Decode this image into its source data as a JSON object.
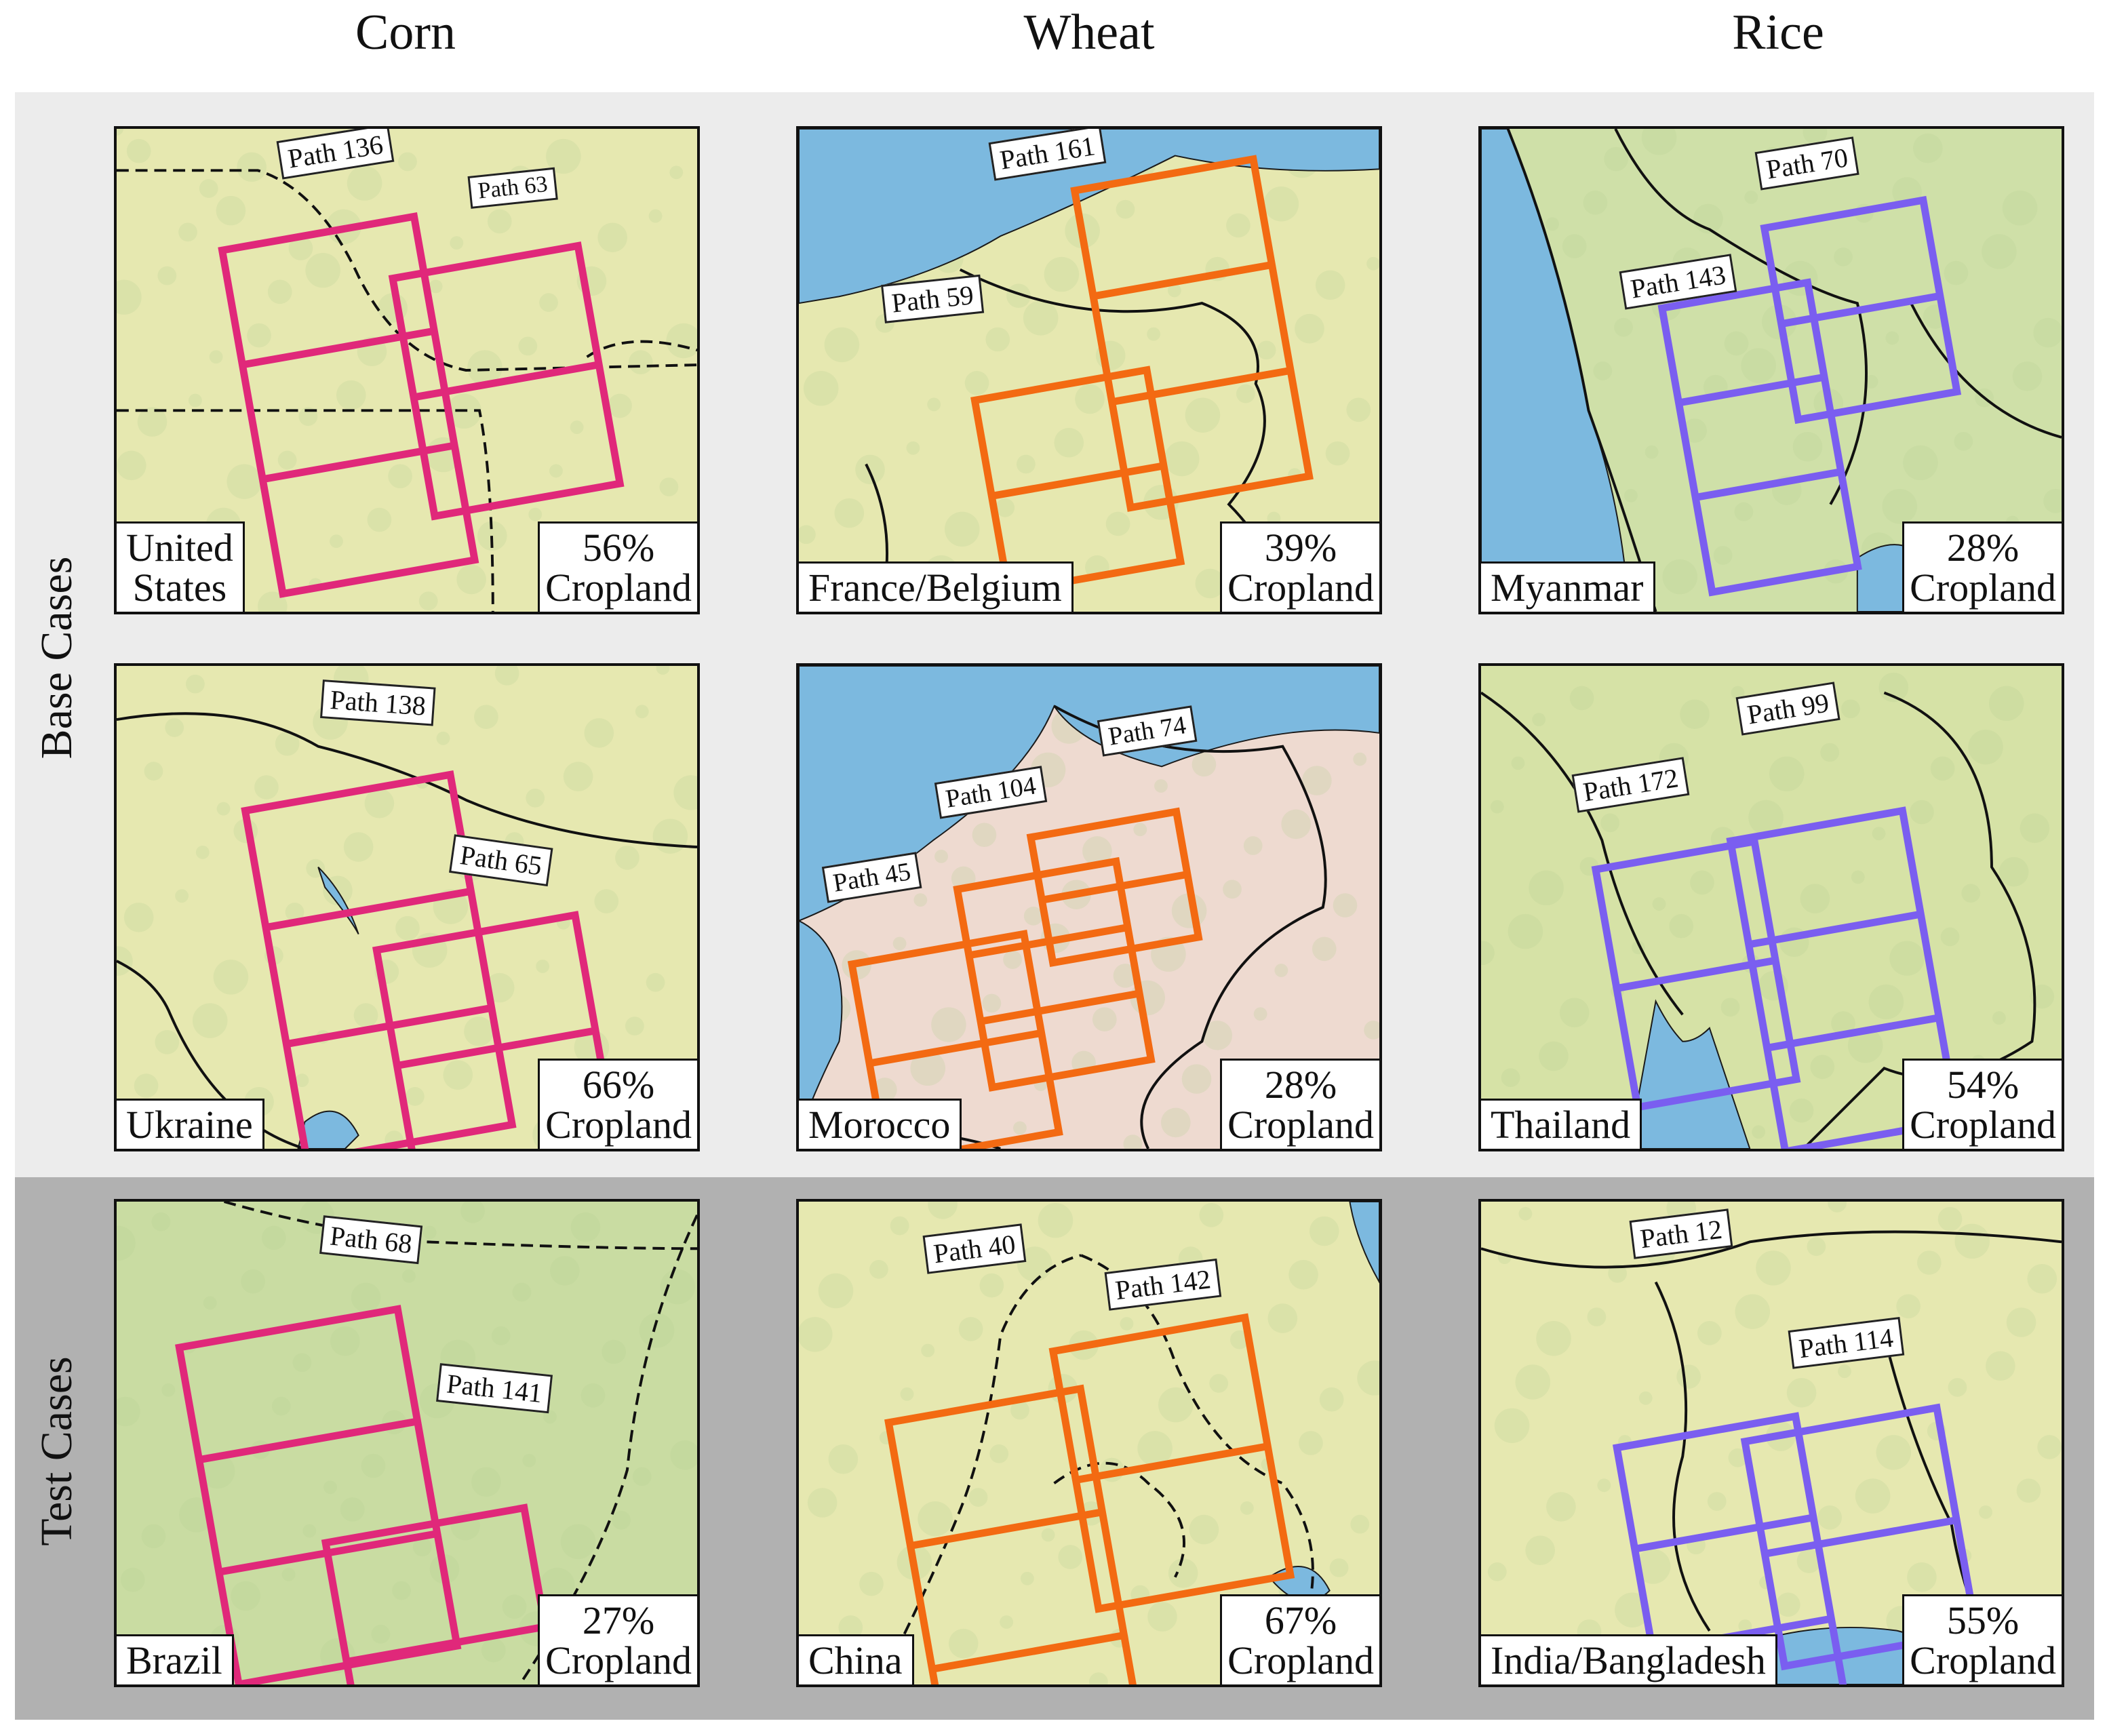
{
  "columns": [
    {
      "label": "Corn",
      "color": "#e0287a"
    },
    {
      "label": "Wheat",
      "color": "#f36a12"
    },
    {
      "label": "Rice",
      "color": "#7a5ef0"
    }
  ],
  "rows": [
    {
      "label": "Base Cases"
    },
    {
      "label": "Test Cases"
    }
  ],
  "colors": {
    "land": "#e6e8b0",
    "land_green": "#c9dca2",
    "water": "#7cb9df",
    "desert": "#eedad0",
    "border": "#111111",
    "base_band": "#ececec",
    "test_band": "#b1b1b1"
  },
  "panels": [
    {
      "crop": "Corn",
      "country": [
        "United",
        "States"
      ],
      "cropland_pct": "56%",
      "cropland_word": "Cropland",
      "paths": [
        "Path 136",
        "Path 63"
      ]
    },
    {
      "crop": "Wheat",
      "country": [
        "France/Belgium"
      ],
      "cropland_pct": "39%",
      "cropland_word": "Cropland",
      "paths": [
        "Path 161",
        "Path 59"
      ]
    },
    {
      "crop": "Rice",
      "country": [
        "Myanmar"
      ],
      "cropland_pct": "28%",
      "cropland_word": "Cropland",
      "paths": [
        "Path 70",
        "Path 143"
      ]
    },
    {
      "crop": "Corn",
      "country": [
        "Ukraine"
      ],
      "cropland_pct": "66%",
      "cropland_word": "Cropland",
      "paths": [
        "Path 138",
        "Path 65"
      ]
    },
    {
      "crop": "Wheat",
      "country": [
        "Morocco"
      ],
      "cropland_pct": "28%",
      "cropland_word": "Cropland",
      "paths": [
        "Path 74",
        "Path 104",
        "Path 45"
      ]
    },
    {
      "crop": "Rice",
      "country": [
        "Thailand"
      ],
      "cropland_pct": "54%",
      "cropland_word": "Cropland",
      "paths": [
        "Path 99",
        "Path 172"
      ]
    },
    {
      "crop": "Corn",
      "country": [
        "Brazil"
      ],
      "cropland_pct": "27%",
      "cropland_word": "Cropland",
      "paths": [
        "Path 68",
        "Path 141"
      ]
    },
    {
      "crop": "Wheat",
      "country": [
        "China"
      ],
      "cropland_pct": "67%",
      "cropland_word": "Cropland",
      "paths": [
        "Path 40",
        "Path 142"
      ]
    },
    {
      "crop": "Rice",
      "country": [
        "India/Bangladesh"
      ],
      "cropland_pct": "55%",
      "cropland_word": "Cropland",
      "paths": [
        "Path 12",
        "Path 114"
      ]
    }
  ]
}
